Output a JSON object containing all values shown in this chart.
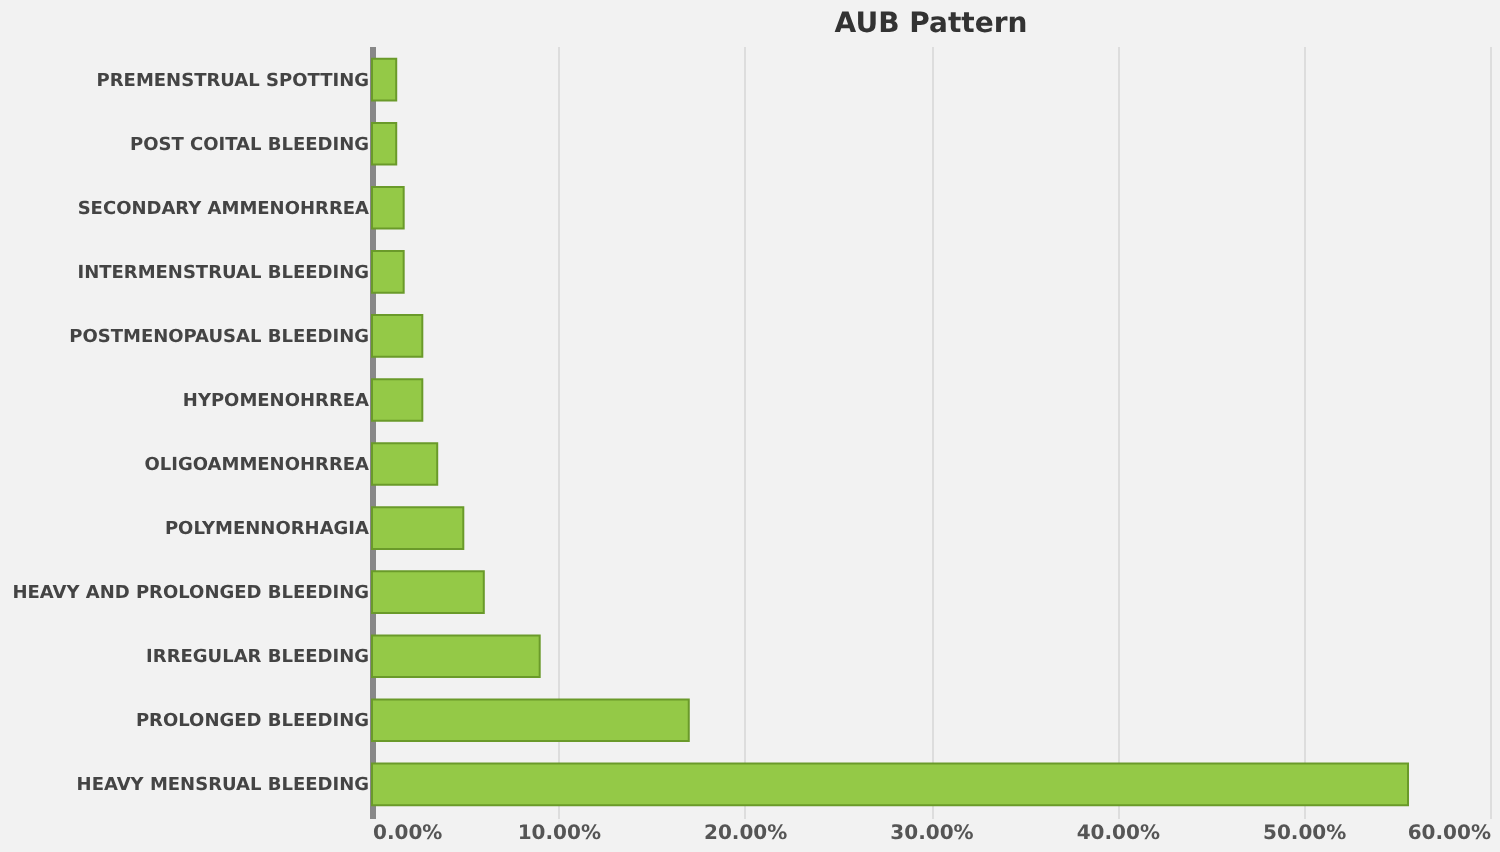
{
  "chart_data": {
    "type": "bar",
    "orientation": "horizontal",
    "title": "AUB Pattern",
    "categories": [
      "PREMENSTRUAL SPOTTING",
      "POST COITAL BLEEDING",
      "SECONDARY AMMENOHRREA",
      "INTERMENSTRUAL BLEEDING",
      "POSTMENOPAUSAL BLEEDING",
      "HYPOMENOHRREA",
      "OLIGOAMMENOHRREA",
      "POLYMENNORHAGIA",
      "HEAVY AND PROLONGED BLEEDING",
      "IRREGULAR BLEEDING",
      "PROLONGED BLEEDING",
      "HEAVY MENSRUAL BLEEDING"
    ],
    "values": [
      1.3,
      1.3,
      1.7,
      1.7,
      2.7,
      2.7,
      3.5,
      4.9,
      6.0,
      9.0,
      17.0,
      55.6
    ],
    "color": "#94c947",
    "xlim": [
      0,
      60
    ],
    "xticks": [
      {
        "value": 0,
        "label": "0.00%"
      },
      {
        "value": 10,
        "label": "10.00%"
      },
      {
        "value": 20,
        "label": "20.00%"
      },
      {
        "value": 30,
        "label": "30.00%"
      },
      {
        "value": 40,
        "label": "40.00%"
      },
      {
        "value": 50,
        "label": "50.00%"
      },
      {
        "value": 60,
        "label": "60.00%"
      }
    ],
    "grid": "x"
  }
}
